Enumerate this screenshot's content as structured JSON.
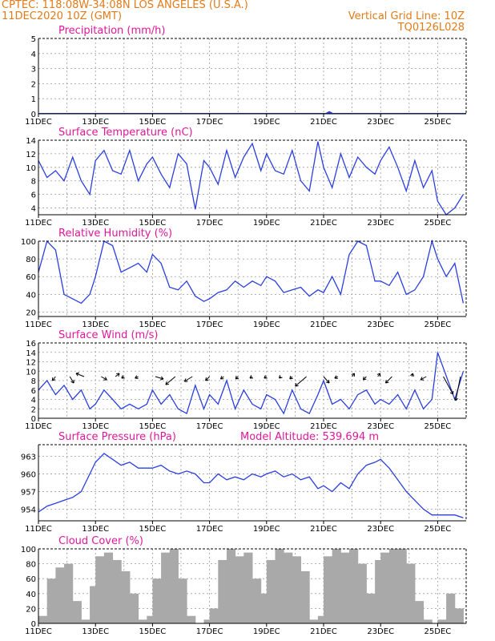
{
  "header": {
    "line1_left": "CPTEC:   118:08W-34:08N  LOS ANGELES (U.S.A.)",
    "line2_left": "11DEC2020 10Z (GMT)",
    "line2_right": "Vertical Grid Line: 10Z",
    "line3_right": "TQ0126L028"
  },
  "colors": {
    "header": "#e07b1a",
    "title": "#e0179a",
    "series": "#2b3fe0",
    "cloud": "#a9a9a9"
  },
  "x_tick_labels": [
    "11DEC",
    "13DEC",
    "15DEC",
    "17DEC",
    "19DEC",
    "21DEC",
    "23DEC",
    "25DEC"
  ],
  "chart_data": [
    {
      "type": "area",
      "title": "Precipitation (mm/h)",
      "ylim": [
        0,
        5
      ],
      "yticks": [
        "0",
        "1",
        "2",
        "3",
        "4",
        "5"
      ],
      "x_days": [
        10.1,
        10.2,
        10.3
      ],
      "values": [
        0.05,
        0.15,
        0.05
      ]
    },
    {
      "type": "line",
      "title": "Surface Temperature (nC)",
      "ylim": [
        3,
        14
      ],
      "yticks": [
        "4",
        "6",
        "8",
        "10",
        "12",
        "14"
      ],
      "x_days": [
        0,
        0.3,
        0.6,
        0.9,
        1.2,
        1.5,
        1.8,
        2.0,
        2.3,
        2.6,
        2.9,
        3.2,
        3.5,
        3.8,
        4.0,
        4.3,
        4.6,
        4.9,
        5.2,
        5.5,
        5.8,
        6.0,
        6.3,
        6.6,
        6.9,
        7.2,
        7.5,
        7.8,
        8.0,
        8.3,
        8.6,
        8.9,
        9.2,
        9.5,
        9.8,
        10.0,
        10.3,
        10.6,
        10.9,
        11.2,
        11.5,
        11.8,
        12.0,
        12.3,
        12.6,
        12.9,
        13.2,
        13.5,
        13.8,
        14.0,
        14.3,
        14.6,
        14.9
      ],
      "values": [
        11,
        8.5,
        9.5,
        8,
        11.5,
        8,
        6,
        11,
        12.5,
        9.5,
        9,
        12.5,
        8,
        10.5,
        11.5,
        9,
        7,
        12,
        10.5,
        3.8,
        11,
        10,
        7.5,
        12.5,
        8.5,
        11.5,
        13.5,
        9.5,
        12,
        9.5,
        9,
        12.5,
        8,
        6.5,
        13.8,
        10,
        7,
        12,
        8.5,
        11.5,
        10,
        9,
        11,
        13,
        10,
        6.5,
        11,
        7,
        9.5,
        5,
        3,
        4,
        6
      ]
    },
    {
      "type": "line",
      "title": "Relative Humidity (%)",
      "ylim": [
        15,
        100
      ],
      "yticks": [
        "20",
        "40",
        "60",
        "80",
        "100"
      ],
      "x_days": [
        0,
        0.3,
        0.6,
        0.9,
        1.2,
        1.5,
        1.8,
        2.0,
        2.3,
        2.6,
        2.9,
        3.2,
        3.5,
        3.8,
        4.0,
        4.3,
        4.6,
        4.9,
        5.2,
        5.5,
        5.8,
        6.0,
        6.3,
        6.6,
        6.9,
        7.2,
        7.5,
        7.8,
        8.0,
        8.3,
        8.6,
        8.9,
        9.2,
        9.5,
        9.8,
        10.0,
        10.3,
        10.6,
        10.9,
        11.2,
        11.5,
        11.8,
        12.0,
        12.3,
        12.6,
        12.9,
        13.2,
        13.5,
        13.8,
        14.0,
        14.3,
        14.6,
        14.9
      ],
      "values": [
        65,
        100,
        90,
        40,
        35,
        30,
        40,
        60,
        100,
        95,
        65,
        70,
        75,
        65,
        85,
        75,
        48,
        45,
        55,
        38,
        32,
        35,
        42,
        45,
        55,
        48,
        55,
        50,
        60,
        55,
        42,
        45,
        48,
        38,
        45,
        42,
        60,
        40,
        85,
        100,
        95,
        55,
        55,
        50,
        65,
        40,
        45,
        60,
        100,
        80,
        60,
        75,
        30
      ]
    },
    {
      "type": "line",
      "title": "Surface Wind (m/s)",
      "ylim": [
        0,
        16
      ],
      "yticks": [
        "0",
        "2",
        "4",
        "6",
        "8",
        "10",
        "12",
        "14",
        "16"
      ],
      "x_days": [
        0,
        0.3,
        0.6,
        0.9,
        1.2,
        1.5,
        1.8,
        2.0,
        2.3,
        2.6,
        2.9,
        3.2,
        3.5,
        3.8,
        4.0,
        4.3,
        4.6,
        4.9,
        5.2,
        5.5,
        5.8,
        6.0,
        6.3,
        6.6,
        6.9,
        7.2,
        7.5,
        7.8,
        8.0,
        8.3,
        8.6,
        8.9,
        9.2,
        9.5,
        9.8,
        10.0,
        10.3,
        10.6,
        10.9,
        11.2,
        11.5,
        11.8,
        12.0,
        12.3,
        12.6,
        12.9,
        13.2,
        13.5,
        13.8,
        14.0,
        14.3,
        14.6,
        14.9
      ],
      "values": [
        6,
        8,
        5,
        7,
        4,
        6,
        2,
        3,
        6,
        4,
        2,
        3,
        2,
        3,
        6,
        3,
        5,
        2,
        1,
        7,
        2,
        5,
        3,
        8,
        2,
        6,
        3,
        2,
        5,
        4,
        1,
        6,
        2,
        1,
        5,
        8,
        3,
        4,
        2,
        5,
        6,
        3,
        4,
        3,
        5,
        2,
        6,
        2,
        4,
        14,
        9,
        4,
        10
      ]
    },
    {
      "type": "line",
      "title": "Surface Pressure (hPa)",
      "annotation": "Model Altitude: 539.694 m",
      "ylim": [
        952,
        965
      ],
      "yticks": [
        "954",
        "957",
        "960",
        "963"
      ],
      "x_days": [
        0,
        0.3,
        0.6,
        0.9,
        1.2,
        1.5,
        1.8,
        2.0,
        2.3,
        2.6,
        2.9,
        3.2,
        3.5,
        3.8,
        4.0,
        4.3,
        4.6,
        4.9,
        5.2,
        5.5,
        5.8,
        6.0,
        6.3,
        6.6,
        6.9,
        7.2,
        7.5,
        7.8,
        8.0,
        8.3,
        8.6,
        8.9,
        9.2,
        9.5,
        9.8,
        10.0,
        10.3,
        10.6,
        10.9,
        11.2,
        11.5,
        11.8,
        12.0,
        12.3,
        12.6,
        12.9,
        13.2,
        13.5,
        13.8,
        14.0,
        14.3,
        14.6,
        14.9
      ],
      "values": [
        953.5,
        954.5,
        955,
        955.5,
        956,
        957,
        960,
        962,
        963.5,
        962.5,
        961.5,
        962,
        961,
        961,
        961,
        961.5,
        960.5,
        960,
        960.5,
        960,
        958.5,
        958.5,
        960,
        959,
        959.5,
        959,
        960,
        959.5,
        960,
        960.5,
        959.5,
        960,
        959,
        959.5,
        957.5,
        958,
        957,
        958.5,
        957.5,
        960,
        961.5,
        962,
        962.5,
        961,
        959,
        957,
        955.5,
        954,
        953,
        953,
        953,
        953,
        952.5
      ]
    },
    {
      "type": "bar",
      "title": "Cloud Cover (%)",
      "ylim": [
        0,
        100
      ],
      "yticks": [
        "0",
        "20",
        "40",
        "60",
        "80",
        "100"
      ],
      "x_days": [
        0,
        0.3,
        0.6,
        0.9,
        1.2,
        1.5,
        1.8,
        2.0,
        2.3,
        2.6,
        2.9,
        3.2,
        3.5,
        3.8,
        4.0,
        4.3,
        4.6,
        4.9,
        5.2,
        5.5,
        5.8,
        6.0,
        6.3,
        6.6,
        6.9,
        7.2,
        7.5,
        7.8,
        8.0,
        8.3,
        8.6,
        8.9,
        9.2,
        9.5,
        9.8,
        10.0,
        10.3,
        10.6,
        10.9,
        11.2,
        11.5,
        11.8,
        12.0,
        12.3,
        12.6,
        12.9,
        13.2,
        13.5,
        13.8,
        14.0,
        14.3,
        14.6,
        14.9
      ],
      "values": [
        10,
        60,
        75,
        80,
        30,
        5,
        50,
        90,
        95,
        85,
        70,
        40,
        5,
        10,
        60,
        95,
        100,
        60,
        10,
        0,
        5,
        20,
        85,
        100,
        90,
        95,
        60,
        40,
        85,
        100,
        95,
        90,
        70,
        5,
        10,
        90,
        100,
        95,
        100,
        80,
        40,
        85,
        95,
        100,
        100,
        80,
        30,
        5,
        0,
        5,
        40,
        20,
        0
      ]
    }
  ],
  "wind_vectors": [
    {
      "day": 0.6,
      "dx": -4,
      "dy": 5
    },
    {
      "day": 1.1,
      "dx": 5,
      "dy": 8
    },
    {
      "day": 1.6,
      "dx": -10,
      "dy": -4
    },
    {
      "day": 2.2,
      "dx": 7,
      "dy": 4
    },
    {
      "day": 2.7,
      "dx": 5,
      "dy": -4
    },
    {
      "day": 3.0,
      "dx": -3,
      "dy": 2
    },
    {
      "day": 3.5,
      "dx": -4,
      "dy": 2
    },
    {
      "day": 4.1,
      "dx": 10,
      "dy": 3
    },
    {
      "day": 4.8,
      "dx": -12,
      "dy": 10
    },
    {
      "day": 5.4,
      "dx": -10,
      "dy": 6
    },
    {
      "day": 6.0,
      "dx": -5,
      "dy": 5
    },
    {
      "day": 6.5,
      "dx": -4,
      "dy": 3
    },
    {
      "day": 7.0,
      "dx": -3,
      "dy": 3
    },
    {
      "day": 7.5,
      "dx": -3,
      "dy": 2
    },
    {
      "day": 8.0,
      "dx": -3,
      "dy": 2
    },
    {
      "day": 8.5,
      "dx": -2,
      "dy": 2
    },
    {
      "day": 8.9,
      "dx": -3,
      "dy": 3
    },
    {
      "day": 9.4,
      "dx": -14,
      "dy": 12
    },
    {
      "day": 10.0,
      "dx": 7,
      "dy": 8
    },
    {
      "day": 10.5,
      "dx": -4,
      "dy": 2
    },
    {
      "day": 11.0,
      "dx": 3,
      "dy": -4
    },
    {
      "day": 11.5,
      "dx": -4,
      "dy": 4
    },
    {
      "day": 11.9,
      "dx": 3,
      "dy": -4
    },
    {
      "day": 12.4,
      "dx": -8,
      "dy": 8
    },
    {
      "day": 13.1,
      "dx": 1,
      "dy": -4
    },
    {
      "day": 13.6,
      "dx": -7,
      "dy": 4
    },
    {
      "day": 14.2,
      "dx": 12,
      "dy": 22
    },
    {
      "day": 14.8,
      "dx": -6,
      "dy": 30
    }
  ]
}
